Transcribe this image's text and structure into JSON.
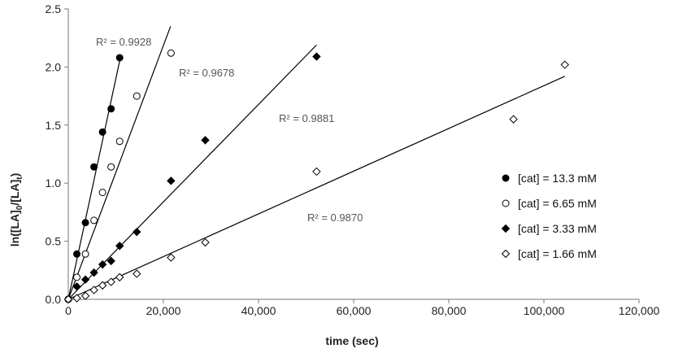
{
  "chart_data": {
    "type": "scatter",
    "xlabel": "time (sec)",
    "ylabel": "ln([LA]",
    "ylabel_sub0": "0",
    "ylabel_mid": "/[LA]",
    "ylabel_sub_t": "t",
    "ylabel_end": ")",
    "xlim": [
      0,
      120000
    ],
    "ylim": [
      0,
      2.5
    ],
    "x_ticks": [
      0,
      20000,
      40000,
      60000,
      80000,
      100000,
      120000
    ],
    "x_tick_labels": [
      "0",
      "20,000",
      "40,000",
      "60,000",
      "80,000",
      "100,000",
      "120,000"
    ],
    "y_ticks": [
      0,
      0.5,
      1.0,
      1.5,
      2.0,
      2.5
    ],
    "y_tick_labels": [
      "0.0",
      "0.5",
      "1.0",
      "1.5",
      "2.0",
      "2.5"
    ],
    "grid": false,
    "legend_position": "right",
    "series": [
      {
        "name": "[cat] = 13.3 mM",
        "marker": "filled-circle",
        "r2_label": "R² = 0.9928",
        "x": [
          0,
          1800,
          3600,
          5400,
          7200,
          9000,
          10800
        ],
        "y": [
          0,
          0.39,
          0.66,
          1.14,
          1.44,
          1.64,
          2.08
        ],
        "trend": {
          "x": [
            0,
            11000
          ],
          "y": [
            0,
            2.09
          ]
        }
      },
      {
        "name": "[cat] = 6.65 mM",
        "marker": "open-circle",
        "r2_label": "R² = 0.9678",
        "x": [
          0,
          1800,
          3600,
          5400,
          7200,
          9000,
          10800,
          14400,
          21600
        ],
        "y": [
          0,
          0.19,
          0.39,
          0.68,
          0.92,
          1.14,
          1.36,
          1.75,
          2.12
        ],
        "trend": {
          "x": [
            0,
            21500
          ],
          "y": [
            0,
            2.35
          ]
        }
      },
      {
        "name": "[cat] = 3.33 mM",
        "marker": "filled-diamond",
        "r2_label": "R² = 0.9881",
        "x": [
          0,
          1800,
          3600,
          5400,
          7200,
          9000,
          10800,
          14400,
          21600,
          28800,
          52200
        ],
        "y": [
          0,
          0.11,
          0.17,
          0.23,
          0.3,
          0.33,
          0.46,
          0.58,
          1.02,
          1.37,
          2.09
        ],
        "trend": {
          "x": [
            0,
            52200
          ],
          "y": [
            0,
            2.19
          ]
        }
      },
      {
        "name": "[cat] = 1.66 mM",
        "marker": "open-diamond",
        "r2_label": "R² = 0.9870",
        "x": [
          0,
          1800,
          3600,
          5400,
          7200,
          9000,
          10800,
          14400,
          21600,
          28800,
          52200,
          93600,
          104400
        ],
        "y": [
          0,
          0.01,
          0.03,
          0.08,
          0.12,
          0.15,
          0.19,
          0.22,
          0.36,
          0.49,
          1.1,
          1.55,
          2.02
        ],
        "trend": {
          "x": [
            0,
            104400
          ],
          "y": [
            0,
            1.92
          ]
        }
      }
    ]
  }
}
